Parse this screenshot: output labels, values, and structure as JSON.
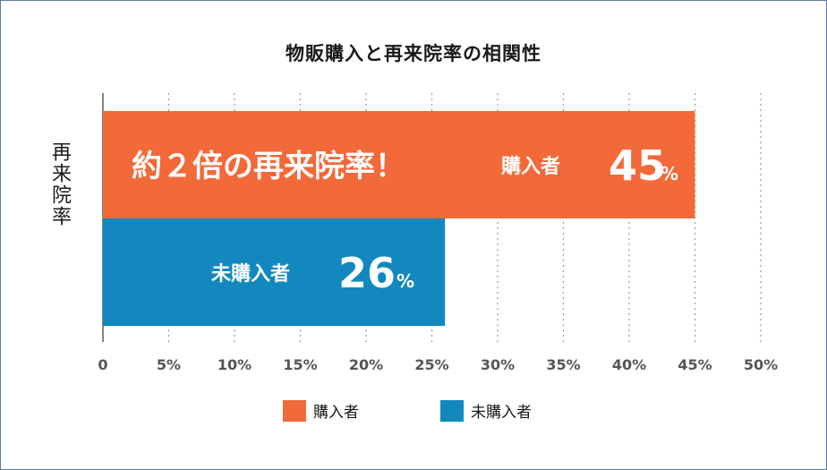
{
  "chart_data": {
    "type": "bar",
    "orientation": "horizontal",
    "title": "物販購入と再来院率の相関性",
    "ylabel": "再来院率",
    "xlim": [
      0,
      50
    ],
    "xticks": [
      0,
      5,
      10,
      15,
      20,
      25,
      30,
      35,
      40,
      45,
      50
    ],
    "xtick_labels": [
      "0",
      "5%",
      "10%",
      "15%",
      "20%",
      "25%",
      "30%",
      "35%",
      "40%",
      "45%",
      "50%"
    ],
    "grid": "vertical dotted",
    "categories": [
      "購入者",
      "未購入者"
    ],
    "values": [
      45,
      26
    ],
    "colors": [
      "#f2693a",
      "#1288be"
    ],
    "value_labels": [
      {
        "category": "購入者",
        "number": "45",
        "unit": "%"
      },
      {
        "category": "未購入者",
        "number": "26",
        "unit": "%"
      }
    ],
    "annotation": "約２倍の再来院率！",
    "legend": {
      "placement": "bottom",
      "items": [
        {
          "label": "購入者",
          "color": "#f2693a"
        },
        {
          "label": "未購入者",
          "color": "#1288be"
        }
      ]
    }
  }
}
